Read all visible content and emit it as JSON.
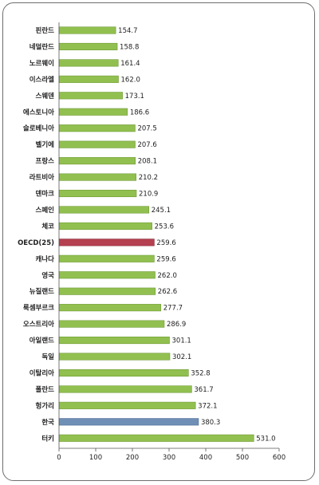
{
  "chart_data": {
    "type": "bar",
    "orientation": "horizontal",
    "categories": [
      "핀란드",
      "네덜란드",
      "노르웨이",
      "이스라엘",
      "스웨덴",
      "에스토니아",
      "슬로베니아",
      "벨기에",
      "프랑스",
      "라트비아",
      "덴마크",
      "스페인",
      "체코",
      "OECD(25)",
      "캐나다",
      "영국",
      "뉴질랜드",
      "룩셈부르크",
      "오스트리아",
      "아일랜드",
      "독일",
      "이탈리아",
      "폴란드",
      "헝가리",
      "한국",
      "터키"
    ],
    "values": [
      154.7,
      158.8,
      161.4,
      162.0,
      173.1,
      186.6,
      207.5,
      207.6,
      208.1,
      210.2,
      210.9,
      245.1,
      253.6,
      259.6,
      259.6,
      262.0,
      262.6,
      277.7,
      286.9,
      301.1,
      302.1,
      352.8,
      361.7,
      372.1,
      380.3,
      531.0
    ],
    "value_labels": [
      "154.7",
      "158.8",
      "161.4",
      "162.0",
      "173.1",
      "186.6",
      "207.5",
      "207.6",
      "208.1",
      "210.2",
      "210.9",
      "245.1",
      "253.6",
      "259.6",
      "259.6",
      "262.0",
      "262.6",
      "277.7",
      "286.9",
      "301.1",
      "302.1",
      "352.8",
      "361.7",
      "372.1",
      "380.3",
      "531.0"
    ],
    "xlim": [
      0,
      600
    ],
    "xticks": [
      "0",
      "100",
      "200",
      "300",
      "400",
      "500",
      "600"
    ],
    "grid": false,
    "colors": {
      "default_bar": "#92c050",
      "default_bar_border": "#6e9a34",
      "highlight_oecd": "#b5404f",
      "highlight_oecd_border": "#8a2c38",
      "highlight_korea": "#6f8fb6",
      "highlight_korea_border": "#4f6e94",
      "label_default": "#222222",
      "label_oecd": "#c0392b",
      "label_korea": "#3a6aa8"
    },
    "highlights": {
      "OECD(25)": "oecd",
      "한국": "korea"
    }
  }
}
